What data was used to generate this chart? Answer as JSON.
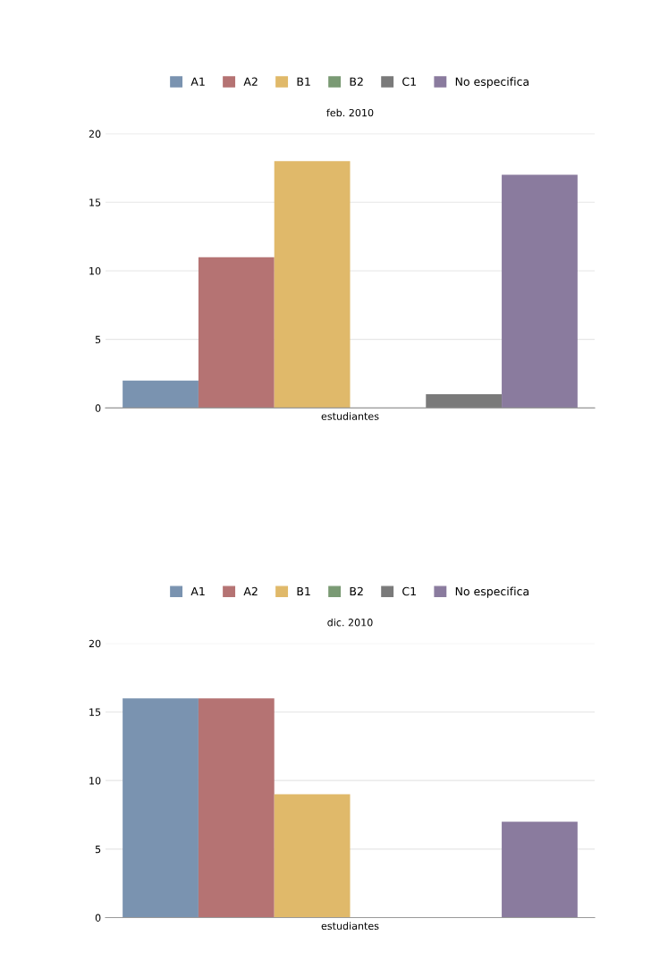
{
  "chart_data": [
    {
      "type": "bar",
      "title": "feb. 2010",
      "categories": [
        "estudiantes"
      ],
      "ylim": [
        0,
        20
      ],
      "yticks": [
        0,
        5,
        10,
        15,
        20
      ],
      "grid": "y",
      "legend": "top",
      "series": [
        {
          "name": "A1",
          "color": "#7a93b0",
          "values": [
            2
          ]
        },
        {
          "name": "A2",
          "color": "#b57373",
          "values": [
            11
          ]
        },
        {
          "name": "B1",
          "color": "#e0b96a",
          "values": [
            18
          ]
        },
        {
          "name": "B2",
          "color": "#7a9a74",
          "values": [
            0
          ]
        },
        {
          "name": "C1",
          "color": "#7a7a7a",
          "values": [
            1
          ]
        },
        {
          "name": "No especifica",
          "color": "#8a7b9e",
          "values": [
            17
          ]
        }
      ]
    },
    {
      "type": "bar",
      "title": "dic. 2010",
      "categories": [
        "estudiantes"
      ],
      "ylim": [
        0,
        20
      ],
      "yticks": [
        0,
        5,
        10,
        15,
        20
      ],
      "grid": "y",
      "legend": "top",
      "series": [
        {
          "name": "A1",
          "color": "#7a93b0",
          "values": [
            16
          ]
        },
        {
          "name": "A2",
          "color": "#b57373",
          "values": [
            16
          ]
        },
        {
          "name": "B1",
          "color": "#e0b96a",
          "values": [
            9
          ]
        },
        {
          "name": "B2",
          "color": "#7a9a74",
          "values": [
            0
          ]
        },
        {
          "name": "C1",
          "color": "#7a7a7a",
          "values": [
            0
          ]
        },
        {
          "name": "No especifica",
          "color": "#8a7b9e",
          "values": [
            7
          ]
        }
      ]
    }
  ]
}
